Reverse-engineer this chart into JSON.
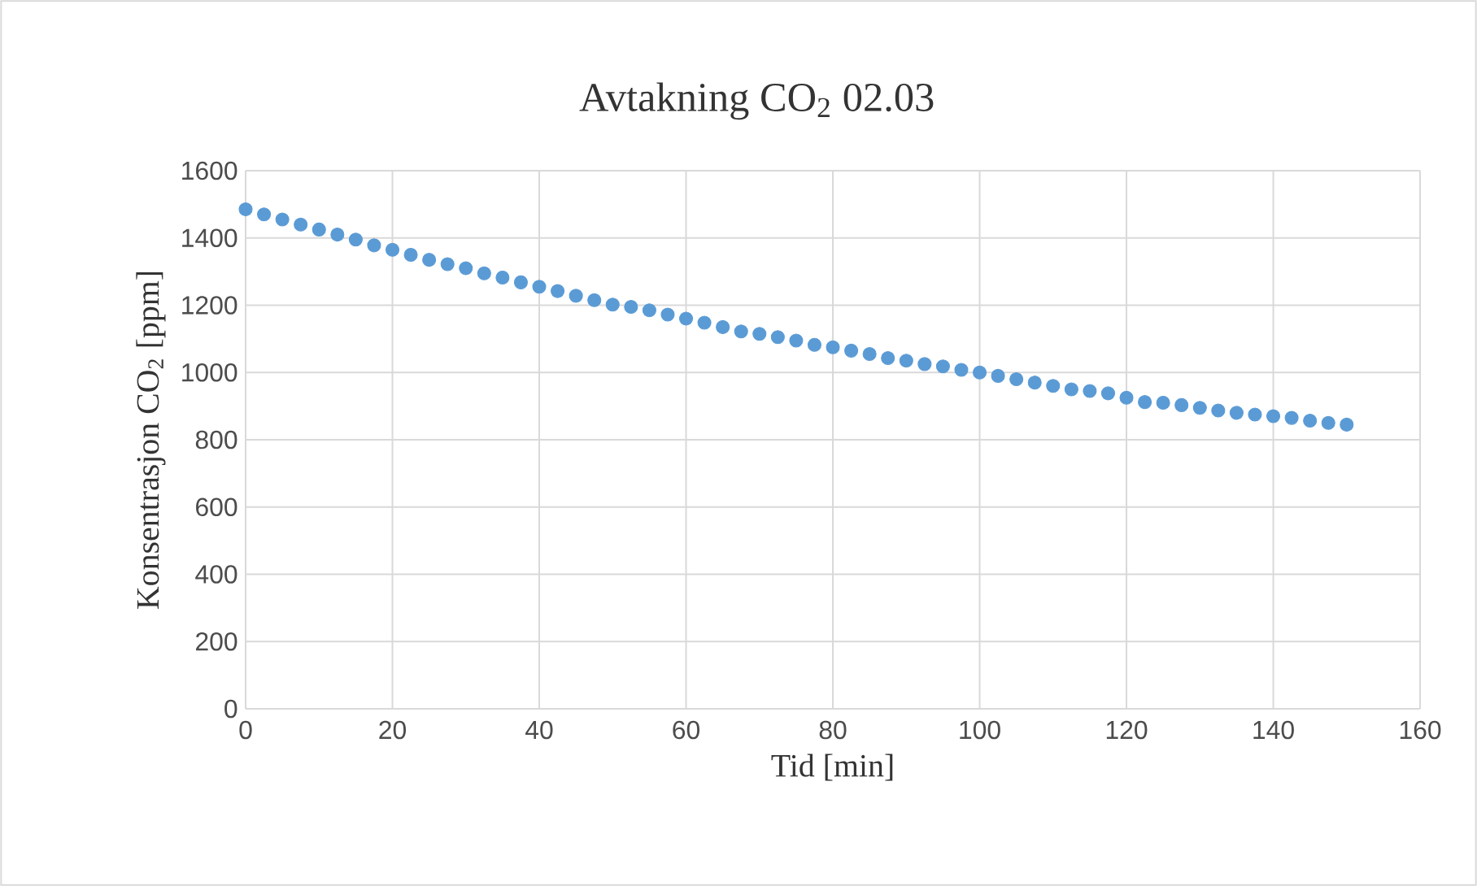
{
  "chart_data": {
    "type": "scatter",
    "title": "Avtakning CO$_{2}$ 02.03",
    "xlabel": "Tid [min]",
    "ylabel": "Konsentrasjon CO$_{2}$ [ppm]",
    "xlim": [
      0,
      160
    ],
    "xticks": [
      0,
      20,
      40,
      60,
      80,
      100,
      120,
      140,
      160
    ],
    "ylim": [
      0,
      1600
    ],
    "yticks": [
      0,
      200,
      400,
      600,
      800,
      1000,
      1200,
      1400,
      1600
    ],
    "grid": true,
    "marker": "circle",
    "series": [
      {
        "color": "#5b9bd5",
        "x": [
          0,
          2.5,
          5,
          7.5,
          10,
          12.5,
          15,
          17.5,
          20,
          22.5,
          25,
          27.5,
          30,
          32.5,
          35,
          37.5,
          40,
          42.5,
          45,
          47.5,
          50,
          52.5,
          55,
          57.5,
          60,
          62.5,
          65,
          67.5,
          70,
          72.5,
          75,
          77.5,
          80,
          82.5,
          85,
          87.5,
          90,
          92.5,
          95,
          97.5,
          100,
          102.5,
          105,
          107.5,
          110,
          112.5,
          115,
          117.5,
          120,
          122.5,
          125,
          127.5,
          130,
          132.5,
          135,
          137.5,
          140,
          142.5,
          145,
          147.5,
          150
        ],
        "values": [
          1485,
          1470,
          1455,
          1440,
          1425,
          1410,
          1395,
          1378,
          1365,
          1350,
          1335,
          1322,
          1310,
          1295,
          1282,
          1268,
          1255,
          1242,
          1228,
          1215,
          1202,
          1195,
          1185,
          1172,
          1160,
          1148,
          1135,
          1122,
          1115,
          1105,
          1095,
          1082,
          1075,
          1065,
          1055,
          1043,
          1035,
          1025,
          1018,
          1008,
          1000,
          990,
          980,
          970,
          960,
          950,
          945,
          938,
          925,
          912,
          910,
          903,
          895,
          887,
          880,
          875,
          870,
          865,
          857,
          850,
          845
        ]
      }
    ]
  }
}
